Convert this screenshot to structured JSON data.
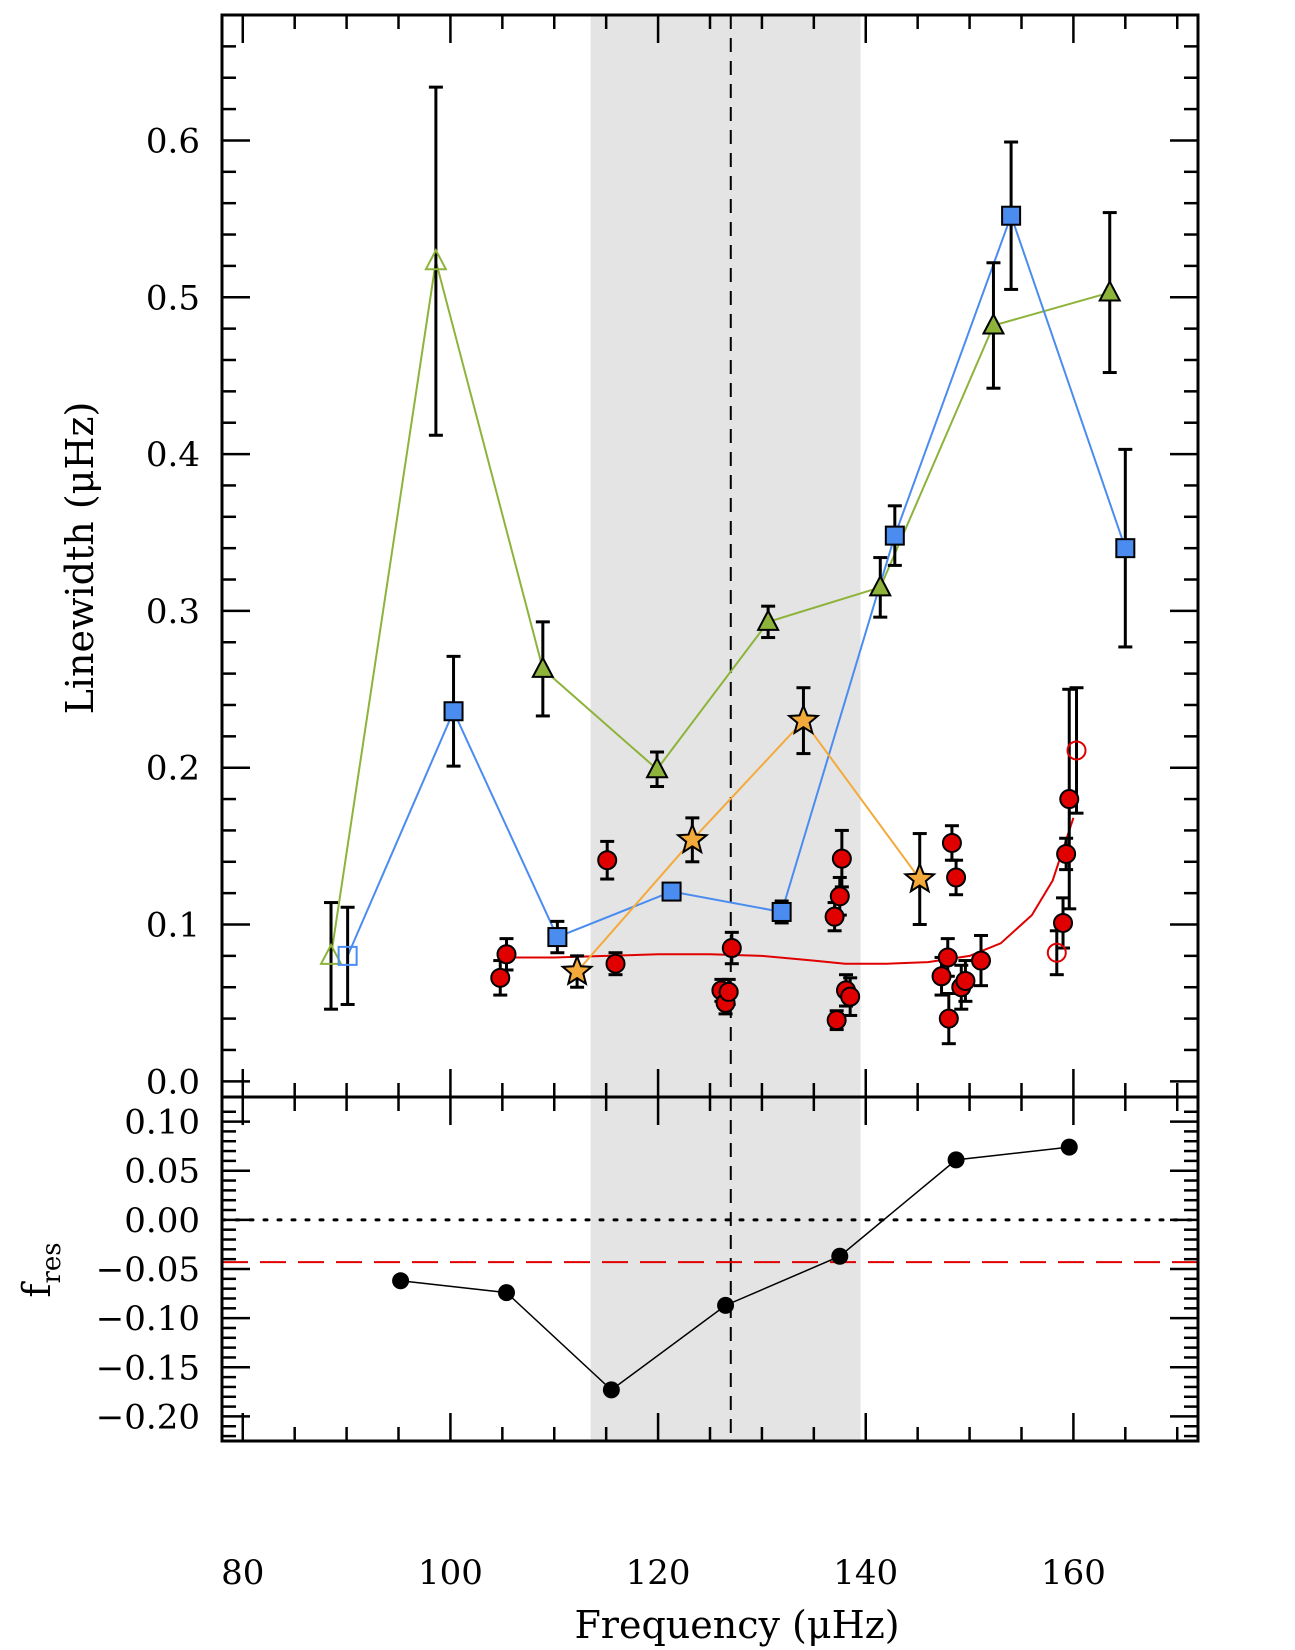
{
  "chart_data": [
    {
      "panel": "top",
      "type": "scatter",
      "xlabel": "Frequency (μHz)",
      "ylabel": "Linewidth (μHz)",
      "xlim": [
        78,
        172
      ],
      "ylim": [
        -0.01,
        0.68
      ],
      "xticks": [
        "80",
        "100",
        "120",
        "140",
        "160"
      ],
      "yticks": [
        "0.0",
        "0.1",
        "0.2",
        "0.3",
        "0.4",
        "0.5",
        "0.6"
      ],
      "shaded_band_x": [
        113.5,
        139.5
      ],
      "vertical_dashed_line_x": 127,
      "series": [
        {
          "marker": "triangle",
          "color": "#8db33a",
          "line_color": "#8db33a",
          "points": [
            {
              "x": 88.5,
              "y": 0.08,
              "err": 0.034,
              "open": true
            },
            {
              "x": 98.6,
              "y": 0.523,
              "err": 0.111,
              "open": true
            },
            {
              "x": 108.9,
              "y": 0.263,
              "err": 0.03
            },
            {
              "x": 119.9,
              "y": 0.199,
              "err": 0.011
            },
            {
              "x": 130.6,
              "y": 0.293,
              "err": 0.01
            },
            {
              "x": 141.4,
              "y": 0.315,
              "err": 0.019
            },
            {
              "x": 152.3,
              "y": 0.482,
              "err": 0.04
            },
            {
              "x": 163.5,
              "y": 0.503,
              "err": 0.051
            }
          ]
        },
        {
          "marker": "square",
          "color": "#4a8cf0",
          "line_color": "#4a8cf0",
          "points": [
            {
              "x": 90.1,
              "y": 0.08,
              "err": 0.031,
              "open": true
            },
            {
              "x": 100.3,
              "y": 0.236,
              "err": 0.035
            },
            {
              "x": 110.3,
              "y": 0.092,
              "err": 0.01
            },
            {
              "x": 121.3,
              "y": 0.121,
              "err": 0.005
            },
            {
              "x": 131.9,
              "y": 0.108,
              "err": 0.007
            },
            {
              "x": 142.8,
              "y": 0.348,
              "err": 0.019
            },
            {
              "x": 154.0,
              "y": 0.552,
              "err": 0.047
            },
            {
              "x": 165.0,
              "y": 0.34,
              "err": 0.063
            }
          ]
        },
        {
          "marker": "star",
          "color": "#f3aa3a",
          "line_color": "#f3aa3a",
          "points": [
            {
              "x": 112.2,
              "y": 0.07,
              "err": 0.01
            },
            {
              "x": 123.3,
              "y": 0.154,
              "err": 0.014
            },
            {
              "x": 134.0,
              "y": 0.23,
              "err": 0.021
            },
            {
              "x": 145.2,
              "y": 0.129,
              "err": 0.029
            }
          ]
        },
        {
          "marker": "circle",
          "color": "#e00000",
          "line_color": null,
          "points": [
            {
              "x": 104.8,
              "y": 0.066,
              "err": 0.011
            },
            {
              "x": 105.4,
              "y": 0.081,
              "err": 0.01
            },
            {
              "x": 115.1,
              "y": 0.141,
              "err": 0.012
            },
            {
              "x": 115.9,
              "y": 0.075,
              "err": 0.007
            },
            {
              "x": 126.1,
              "y": 0.058,
              "err": 0.007
            },
            {
              "x": 126.5,
              "y": 0.05,
              "err": 0.007
            },
            {
              "x": 126.8,
              "y": 0.057,
              "err": 0.008
            },
            {
              "x": 127.1,
              "y": 0.085,
              "err": 0.01
            },
            {
              "x": 137.0,
              "y": 0.105,
              "err": 0.009
            },
            {
              "x": 137.2,
              "y": 0.039,
              "err": 0.006
            },
            {
              "x": 137.5,
              "y": 0.118,
              "err": 0.012
            },
            {
              "x": 137.7,
              "y": 0.142,
              "err": 0.018
            },
            {
              "x": 138.1,
              "y": 0.058,
              "err": 0.01
            },
            {
              "x": 138.5,
              "y": 0.054,
              "err": 0.012
            },
            {
              "x": 147.3,
              "y": 0.067,
              "err": 0.012
            },
            {
              "x": 147.9,
              "y": 0.079,
              "err": 0.012
            },
            {
              "x": 148.0,
              "y": 0.04,
              "err": 0.016
            },
            {
              "x": 148.3,
              "y": 0.152,
              "err": 0.011
            },
            {
              "x": 148.7,
              "y": 0.13,
              "err": 0.011
            },
            {
              "x": 149.2,
              "y": 0.06,
              "err": 0.014
            },
            {
              "x": 149.6,
              "y": 0.064,
              "err": 0.013
            },
            {
              "x": 151.1,
              "y": 0.077,
              "err": 0.016
            },
            {
              "x": 158.4,
              "y": 0.082,
              "err": 0.014,
              "open": true
            },
            {
              "x": 159.0,
              "y": 0.101,
              "err": 0.016
            },
            {
              "x": 159.3,
              "y": 0.145,
              "err": 0.01
            },
            {
              "x": 159.6,
              "y": 0.18,
              "err": 0.07
            },
            {
              "x": 160.3,
              "y": 0.211,
              "err": 0.04,
              "open": true
            }
          ]
        }
      ],
      "fit_curve": {
        "color": "#e00000",
        "points": [
          [
            105.4,
            0.079
          ],
          [
            110,
            0.079
          ],
          [
            115,
            0.08
          ],
          [
            120,
            0.081
          ],
          [
            125,
            0.081
          ],
          [
            130,
            0.08
          ],
          [
            135,
            0.077
          ],
          [
            138,
            0.075
          ],
          [
            142,
            0.075
          ],
          [
            146,
            0.076
          ],
          [
            150,
            0.08
          ],
          [
            153,
            0.088
          ],
          [
            156,
            0.106
          ],
          [
            158,
            0.128
          ],
          [
            160,
            0.168
          ]
        ]
      }
    },
    {
      "panel": "bottom",
      "type": "line",
      "xlabel": "Frequency (μHz)",
      "ylabel": "f",
      "ylabel_subscript": "res",
      "xlim": [
        78,
        172
      ],
      "ylim": [
        -0.225,
        0.125
      ],
      "yticks": [
        "0.10",
        "0.05",
        "0.00",
        "−0.05",
        "−0.10",
        "−0.15",
        "−0.20"
      ],
      "dotted_zero_line": 0.0,
      "red_dashed_line": -0.043,
      "series": [
        {
          "color": "#000000",
          "x": [
            95.2,
            105.4,
            115.5,
            126.5,
            137.5,
            148.7,
            159.6
          ],
          "y": [
            -0.062,
            -0.074,
            -0.173,
            -0.087,
            -0.037,
            0.061,
            0.074
          ]
        }
      ]
    }
  ]
}
